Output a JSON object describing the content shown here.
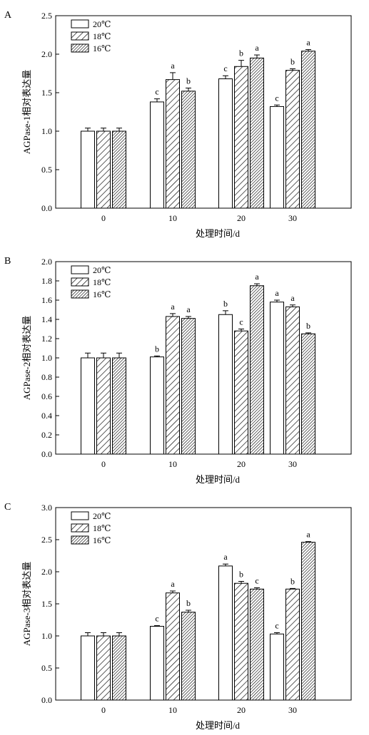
{
  "chart_data": [
    {
      "panel_label": "A",
      "type": "bar",
      "ylabel": "AGPase-1相对表达量",
      "xlabel": "处理时间/d",
      "ylim": [
        0,
        2.5
      ],
      "yticks": [
        "0.0",
        "0.5",
        "1.0",
        "1.5",
        "2.0",
        "2.5"
      ],
      "categories": [
        "0",
        "10",
        "20",
        "30"
      ],
      "legend_position": "top-left",
      "series": [
        {
          "name": "20℃",
          "pattern": "open",
          "values": [
            1.0,
            1.38,
            1.68,
            1.32
          ],
          "errors": [
            0.04,
            0.04,
            0.04,
            0.02
          ],
          "letters": [
            "",
            "c",
            "c",
            "c"
          ]
        },
        {
          "name": "18℃",
          "pattern": "hatch",
          "values": [
            1.0,
            1.67,
            1.84,
            1.79
          ],
          "errors": [
            0.04,
            0.09,
            0.08,
            0.02
          ],
          "letters": [
            "",
            "a",
            "b",
            "b"
          ]
        },
        {
          "name": "16℃",
          "pattern": "dense-hatch",
          "values": [
            1.0,
            1.52,
            1.95,
            2.04
          ],
          "errors": [
            0.04,
            0.04,
            0.04,
            0.02
          ],
          "letters": [
            "",
            "b",
            "a",
            "a"
          ]
        }
      ]
    },
    {
      "panel_label": "B",
      "type": "bar",
      "ylabel": "AGPase-2相对表达量",
      "xlabel": "处理时间/d",
      "ylim": [
        0,
        2.0
      ],
      "yticks": [
        "0.0",
        "0.2",
        "0.4",
        "0.6",
        "0.8",
        "1.0",
        "1.2",
        "1.4",
        "1.6",
        "1.8",
        "2.0"
      ],
      "categories": [
        "0",
        "10",
        "20",
        "30"
      ],
      "legend_position": "top-left",
      "series": [
        {
          "name": "20℃",
          "pattern": "open",
          "values": [
            1.0,
            1.01,
            1.45,
            1.58
          ],
          "errors": [
            0.05,
            0.01,
            0.04,
            0.02
          ],
          "letters": [
            "",
            "b",
            "b",
            "a"
          ]
        },
        {
          "name": "18℃",
          "pattern": "hatch",
          "values": [
            1.0,
            1.43,
            1.28,
            1.53
          ],
          "errors": [
            0.05,
            0.03,
            0.02,
            0.02
          ],
          "letters": [
            "",
            "a",
            "c",
            "a"
          ]
        },
        {
          "name": "16℃",
          "pattern": "dense-hatch",
          "values": [
            1.0,
            1.41,
            1.75,
            1.25
          ],
          "errors": [
            0.05,
            0.02,
            0.02,
            0.01
          ],
          "letters": [
            "",
            "a",
            "a",
            "b"
          ]
        }
      ]
    },
    {
      "panel_label": "C",
      "type": "bar",
      "ylabel": "AGPase-3相对表达量",
      "xlabel": "处理时间/d",
      "ylim": [
        0,
        3.0
      ],
      "yticks": [
        "0.0",
        "0.5",
        "1.0",
        "1.5",
        "2.0",
        "2.5",
        "3.0"
      ],
      "categories": [
        "0",
        "10",
        "20",
        "30"
      ],
      "legend_position": "top-left",
      "series": [
        {
          "name": "20℃",
          "pattern": "open",
          "values": [
            1.0,
            1.15,
            2.09,
            1.03
          ],
          "errors": [
            0.05,
            0.01,
            0.03,
            0.02
          ],
          "letters": [
            "",
            "c",
            "a",
            "c"
          ]
        },
        {
          "name": "18℃",
          "pattern": "hatch",
          "values": [
            1.0,
            1.67,
            1.82,
            1.73
          ],
          "errors": [
            0.05,
            0.03,
            0.03,
            0.01
          ],
          "letters": [
            "",
            "a",
            "b",
            "b"
          ]
        },
        {
          "name": "16℃",
          "pattern": "dense-hatch",
          "values": [
            1.0,
            1.37,
            1.73,
            2.46
          ],
          "errors": [
            0.05,
            0.03,
            0.02,
            0.01
          ],
          "letters": [
            "",
            "b",
            "c",
            "a"
          ]
        }
      ]
    }
  ]
}
